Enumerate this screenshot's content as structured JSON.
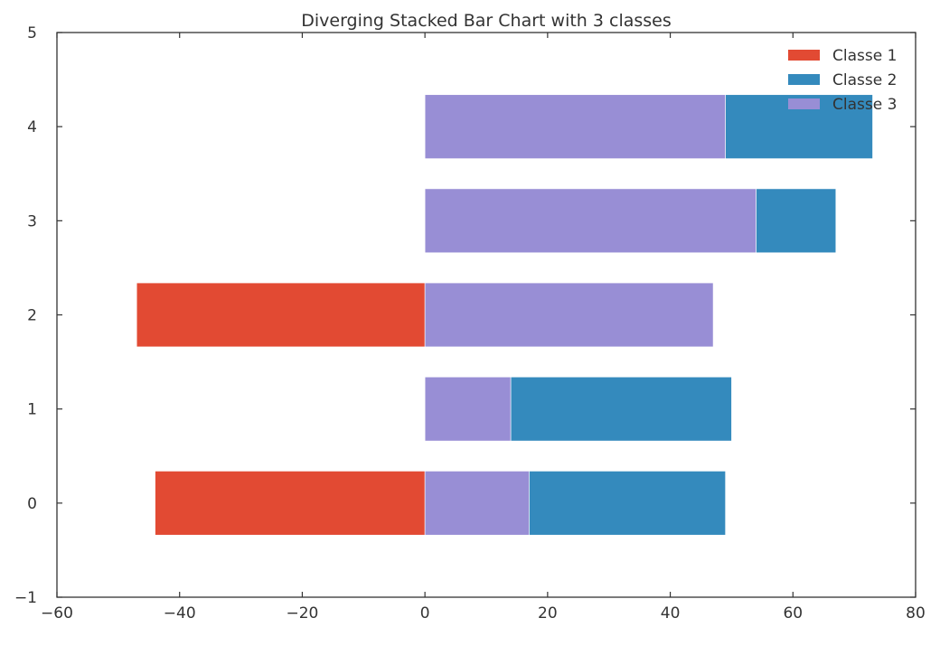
{
  "chart_data": {
    "type": "bar",
    "orientation": "horizontal",
    "title": "Diverging Stacked Bar Chart with 3 classes",
    "xlabel": "",
    "ylabel": "",
    "xlim": [
      -60,
      80
    ],
    "ylim": [
      -1,
      5
    ],
    "xticks": [
      -60,
      -40,
      -20,
      0,
      20,
      40,
      60,
      80
    ],
    "xtick_labels": [
      "−60",
      "−40",
      "−20",
      "0",
      "20",
      "40",
      "60",
      "80"
    ],
    "yticks": [
      -1,
      0,
      1,
      2,
      3,
      4,
      5
    ],
    "ytick_labels": [
      "−1",
      "0",
      "1",
      "2",
      "3",
      "4",
      "5"
    ],
    "categories": [
      0,
      1,
      2,
      3,
      4
    ],
    "grid": false,
    "legend_position": "top-right",
    "series": [
      {
        "name": "Classe 1",
        "color": "#e24a33",
        "side": "negative",
        "values": [
          44,
          0,
          47,
          0,
          0
        ]
      },
      {
        "name": "Classe 2",
        "color": "#348abd",
        "side": "positive",
        "values": [
          32,
          36,
          0,
          13,
          24
        ]
      },
      {
        "name": "Classe 3",
        "color": "#988ed5",
        "side": "positive",
        "values": [
          17,
          14,
          47,
          54,
          49
        ]
      }
    ],
    "legend_order": [
      "Classe 1",
      "Classe 2",
      "Classe 3"
    ]
  }
}
